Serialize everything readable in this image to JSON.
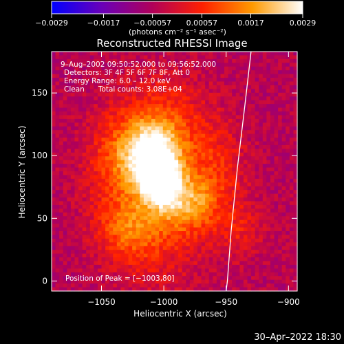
{
  "chart_data": {
    "type": "heatmap",
    "title": "Reconstructed RHESSI Image",
    "xlabel": "Heliocentric X (arcsec)",
    "ylabel": "Heliocentric Y (arcsec)",
    "xlim": [
      -1090,
      -893
    ],
    "ylim": [
      -8,
      183
    ],
    "x_ticks": [
      -1050,
      -1000,
      -950,
      -900
    ],
    "x_tick_labels": [
      "−1050",
      "−1000",
      "−950",
      "−900"
    ],
    "y_ticks": [
      0,
      50,
      100,
      150
    ],
    "y_tick_labels": [
      "0",
      "50",
      "100",
      "150"
    ],
    "colorbar": {
      "range": [
        -0.0029,
        0.0029
      ],
      "ticks": [
        -0.0029,
        -0.0017,
        -0.00057,
        0.00057,
        0.0017,
        0.0029
      ],
      "tick_labels": [
        "−0.0029",
        "−0.0017",
        "−0.00057",
        "0.00057",
        "0.0017",
        "0.0029"
      ],
      "units": "(photons cm⁻² s⁻¹ asec⁻²)",
      "colormap": [
        "#0000ff",
        "#6a00b8",
        "#b0005a",
        "#ff2000",
        "#ff9a00",
        "#ffffff"
      ]
    },
    "annotations": [
      "9–Aug–2002 09:50:52.000 to 09:56:52.000",
      "Detectors: 3F 4F 5F 6F 7F 8F, Att 0",
      "Energy Range: 6.0 – 12.0 keV",
      "Clean      Total counts: 3.08E+04"
    ],
    "peak_label": "Position of Peak = [−1003,80]",
    "peak": [
      -1003,
      80
    ],
    "limb_curve": {
      "x": [
        -930,
        -935,
        -941,
        -946,
        -949,
        -950
      ],
      "y": [
        183,
        140,
        90,
        40,
        0,
        -8
      ]
    },
    "source_blobs": [
      {
        "cx": -1003,
        "cy": 80,
        "sx": 11,
        "sy": 14,
        "amp": 0.0029
      },
      {
        "cx": -1010,
        "cy": 102,
        "sx": 15,
        "sy": 16,
        "amp": 0.0022
      },
      {
        "cx": -1000,
        "cy": 118,
        "sx": 24,
        "sy": 30,
        "amp": 0.0014
      },
      {
        "cx": -1035,
        "cy": 95,
        "sx": 20,
        "sy": 28,
        "amp": 0.0012
      },
      {
        "cx": -980,
        "cy": 62,
        "sx": 16,
        "sy": 16,
        "amp": 0.0017
      },
      {
        "cx": -1028,
        "cy": 40,
        "sx": 18,
        "sy": 16,
        "amp": 0.0012
      },
      {
        "cx": -1005,
        "cy": 45,
        "sx": 28,
        "sy": 40,
        "amp": 0.0009
      },
      {
        "cx": -955,
        "cy": 90,
        "sx": 16,
        "sy": 28,
        "amp": 0.0008
      },
      {
        "cx": -938,
        "cy": 40,
        "sx": 14,
        "sy": 16,
        "amp": 0.0007
      }
    ],
    "background_level": -0.0005,
    "grid": false
  },
  "footer": {
    "date": "30–Apr–2022 18:30"
  }
}
